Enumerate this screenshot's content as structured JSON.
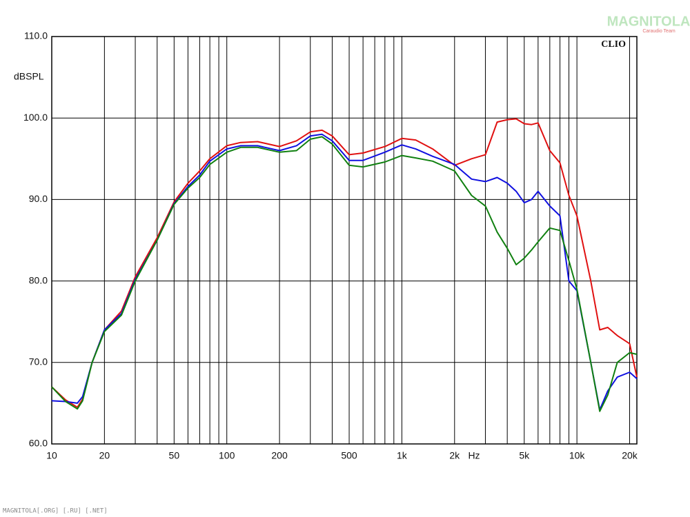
{
  "chart_data": {
    "type": "line",
    "annotation": "CLIO",
    "y_label": "dBSPL",
    "x_label": "Hz",
    "watermark": "MAGNITOLA",
    "watermark_sub": "Caraudio Team",
    "footer": "MAGNITOLA[.ORG] [.RU] [.NET]",
    "xscale": "log",
    "grid": true,
    "xlim": [
      10,
      22000
    ],
    "ylim": [
      60,
      110
    ],
    "yticks": [
      {
        "value": 60,
        "label": "60.0"
      },
      {
        "value": 70,
        "label": "70.0"
      },
      {
        "value": 80,
        "label": "80.0"
      },
      {
        "value": 90,
        "label": "90.0"
      },
      {
        "value": 100,
        "label": "100.0"
      },
      {
        "value": 110,
        "label": "110.0"
      }
    ],
    "xticks": [
      10,
      20,
      50,
      100,
      200,
      500,
      {
        "value": 1000,
        "label": "1k"
      },
      {
        "value": 2000,
        "label": "2k"
      },
      {
        "value": 5000,
        "label": "5k"
      },
      {
        "value": 10000,
        "label": "10k"
      },
      {
        "value": 20000,
        "label": "20k"
      }
    ],
    "xminor": [
      30,
      40,
      60,
      70,
      80,
      90,
      300,
      400,
      600,
      700,
      800,
      900,
      3000,
      4000,
      6000,
      7000,
      8000,
      9000
    ],
    "x": [
      10,
      12,
      14,
      15,
      17,
      20,
      25,
      30,
      40,
      50,
      60,
      70,
      80,
      100,
      120,
      150,
      200,
      250,
      300,
      350,
      400,
      500,
      600,
      800,
      1000,
      1200,
      1500,
      2000,
      2500,
      3000,
      3500,
      4000,
      4500,
      5000,
      5500,
      6000,
      7000,
      8000,
      9000,
      10000,
      12000,
      13500,
      15000,
      17000,
      20000,
      22000
    ],
    "series": [
      {
        "color": "#e01010",
        "values": [
          67,
          65.4,
          64.5,
          65.5,
          70,
          74,
          76.3,
          80.5,
          85.3,
          89.7,
          92,
          93.5,
          95,
          96.6,
          97,
          97.1,
          96.5,
          97.2,
          98.3,
          98.5,
          97.8,
          95.5,
          95.7,
          96.5,
          97.5,
          97.3,
          96.2,
          94.2,
          95,
          95.5,
          99.5,
          99.8,
          99.9,
          99.3,
          99.2,
          99.4,
          96,
          94.5,
          90.5,
          88,
          80,
          74,
          74.3,
          73.3,
          72.3,
          68.2
        ]
      },
      {
        "color": "#1010e0",
        "values": [
          65.3,
          65.2,
          65,
          65.8,
          70,
          74,
          76,
          80.2,
          85,
          89.5,
          91.6,
          93,
          94.7,
          96.2,
          96.6,
          96.6,
          96,
          96.6,
          97.8,
          98,
          97.2,
          94.8,
          94.8,
          95.8,
          96.7,
          96.2,
          95.3,
          94.3,
          92.5,
          92.2,
          92.7,
          92,
          91,
          89.6,
          90,
          91,
          89.2,
          88,
          80,
          78.8,
          70,
          64.2,
          66.5,
          68.2,
          68.8,
          68
        ]
      },
      {
        "color": "#108010",
        "values": [
          67,
          65.2,
          64.3,
          65.3,
          70,
          73.8,
          75.8,
          80,
          85,
          89.4,
          91.4,
          92.7,
          94.3,
          95.8,
          96.4,
          96.4,
          95.8,
          96,
          97.4,
          97.7,
          96.8,
          94.2,
          94,
          94.6,
          95.4,
          95.1,
          94.7,
          93.5,
          90.5,
          89.2,
          86,
          84,
          82,
          82.8,
          83.8,
          84.8,
          86.5,
          86.2,
          82.5,
          79,
          70,
          64,
          66,
          70,
          71.2,
          71
        ]
      }
    ]
  }
}
